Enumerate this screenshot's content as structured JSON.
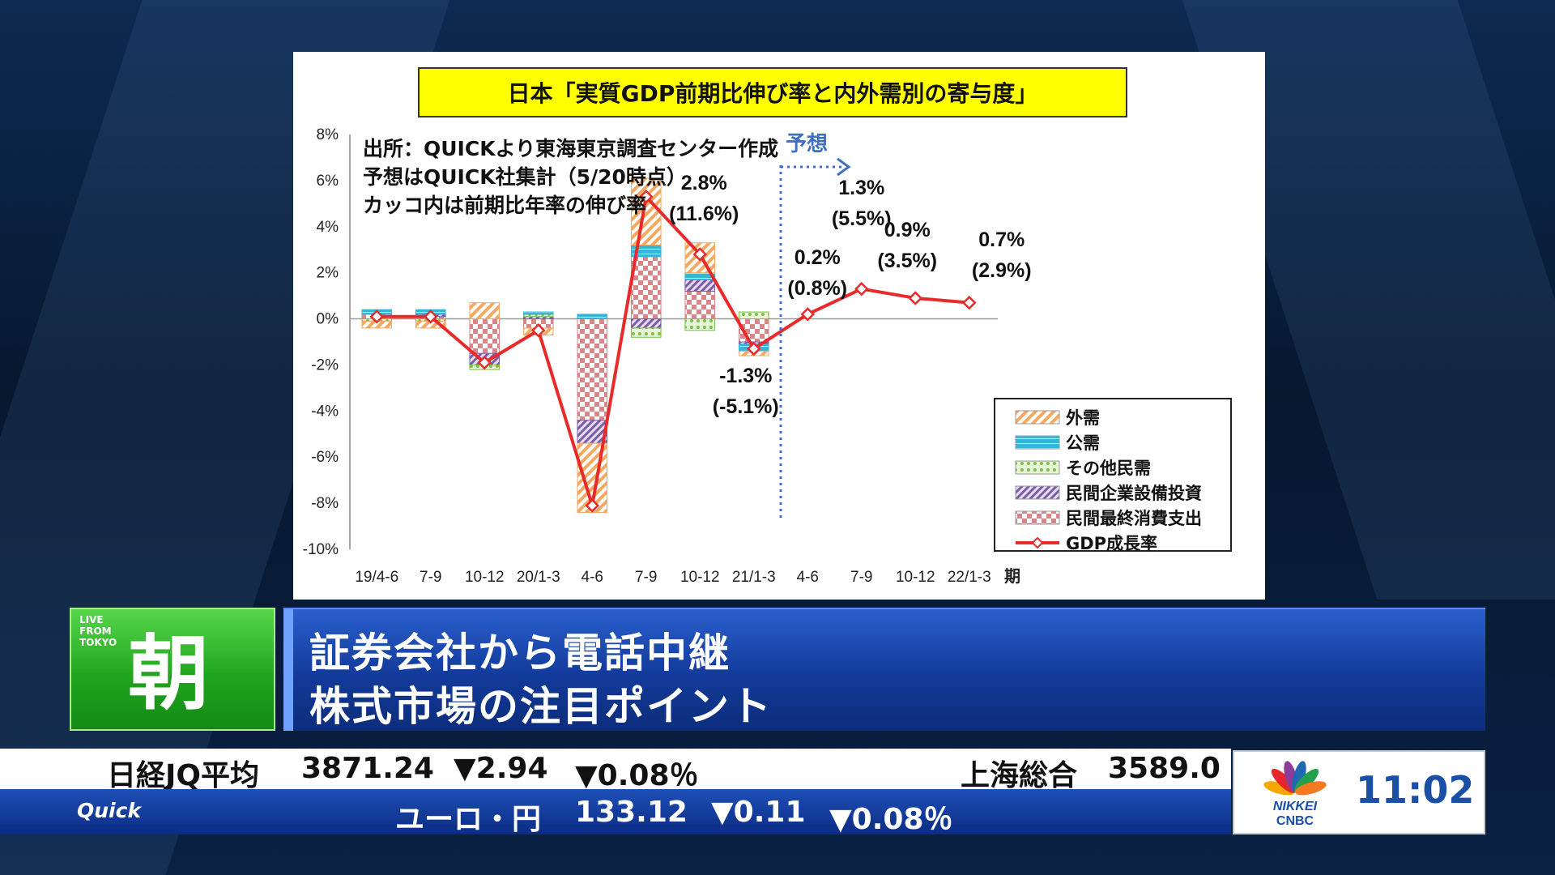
{
  "chart": {
    "title": "日本「実質GDP前期比伸び率と内外需別の寄与度」",
    "notes": [
      "出所：QUICKより東海東京調査センター作成",
      "予想はQUICK社集計（5/20時点）",
      "カッコ内は前期比年率の伸び率"
    ],
    "forecast_label": "予想",
    "x_unit_label": "期",
    "annotations": [
      {
        "x": "10-12a",
        "line1": "2.8%",
        "line2": "(11.6%)"
      },
      {
        "x": "21/1-3",
        "line1": "-1.3%",
        "line2": "(-5.1%)"
      },
      {
        "x": "4-6b",
        "line1": "0.2%",
        "line2": "(0.8%)"
      },
      {
        "x": "7-9b",
        "line1": "1.3%",
        "line2": "(5.5%)"
      },
      {
        "x": "10-12b",
        "line1": "0.9%",
        "line2": "(3.5%)"
      },
      {
        "x": "22/1-3",
        "line1": "0.7%",
        "line2": "(2.9%)"
      }
    ],
    "legend": [
      {
        "name": "外需",
        "pattern": "hatch-orange"
      },
      {
        "name": "公需",
        "pattern": "solid-cyan"
      },
      {
        "name": "その他民需",
        "pattern": "dots-green"
      },
      {
        "name": "民間企業設備投資",
        "pattern": "hatch-purple"
      },
      {
        "name": "民間最終消費支出",
        "pattern": "check-red"
      },
      {
        "name": "GDP成長率",
        "pattern": "line-red"
      }
    ]
  },
  "chart_data": {
    "type": "bar",
    "stacked": true,
    "categories": [
      "19/4-6",
      "7-9",
      "10-12",
      "20/1-3",
      "4-6",
      "7-9",
      "10-12",
      "21/1-3",
      "4-6",
      "7-9",
      "10-12",
      "22/1-3"
    ],
    "ylim": [
      -10,
      8
    ],
    "yticks": [
      "8%",
      "6%",
      "4%",
      "2%",
      "0%",
      "-2%",
      "-4%",
      "-6%",
      "-8%",
      "-10%"
    ],
    "ytick_values": [
      8,
      6,
      4,
      2,
      0,
      -2,
      -4,
      -6,
      -8,
      -10
    ],
    "grid": false,
    "legend_position": "bottom-right",
    "forecast_start_index": 8,
    "series": [
      {
        "name": "民間最終消費支出",
        "color": "#d9534f",
        "values": [
          0.2,
          0.1,
          -1.5,
          -0.4,
          -4.4,
          2.7,
          1.2,
          -1.0,
          null,
          null,
          null,
          null
        ]
      },
      {
        "name": "民間企業設備投資",
        "color": "#7b5ea7",
        "values": [
          0.0,
          0.1,
          -0.5,
          0.1,
          -1.0,
          -0.4,
          0.5,
          -0.1,
          null,
          null,
          null,
          null
        ]
      },
      {
        "name": "その他民需",
        "color": "#7ac142",
        "values": [
          -0.1,
          -0.1,
          -0.2,
          0.1,
          0.0,
          -0.4,
          -0.5,
          0.3,
          null,
          null,
          null,
          null
        ]
      },
      {
        "name": "公需",
        "color": "#35b6d8",
        "values": [
          0.2,
          0.2,
          0.0,
          0.1,
          0.2,
          0.5,
          0.3,
          -0.3,
          null,
          null,
          null,
          null
        ]
      },
      {
        "name": "外需",
        "color": "#f5a860",
        "values": [
          -0.3,
          -0.3,
          0.7,
          -0.3,
          -3.0,
          2.9,
          1.3,
          -0.2,
          null,
          null,
          null,
          null
        ]
      },
      {
        "name": "GDP成長率",
        "type": "line",
        "color": "#e82a2a",
        "values": [
          0.1,
          0.1,
          -1.9,
          -0.5,
          -8.1,
          5.3,
          2.8,
          -1.3,
          0.2,
          1.3,
          0.9,
          0.7
        ]
      }
    ]
  },
  "lower_third": {
    "live_line1": "LIVE",
    "live_line2": "FROM",
    "live_line3": "TOKYO",
    "live_kanji": "朝",
    "headline_line1": "証券会社から電話中継",
    "headline_line2": "株式市場の注目ポイント"
  },
  "ticker": {
    "index1_name": "日経JQ平均",
    "index1_value": "3871.24",
    "index1_change": "▼2.94",
    "index1_pct": "▼0.08％",
    "index2_name": "上海総合",
    "index2_value": "3589.0",
    "fx_name": "ユーロ・円",
    "fx_value": "133.12",
    "fx_change": "▼0.11",
    "fx_pct": "▼0.08％",
    "provider": "Quick"
  },
  "broadcaster": {
    "logo_top": "NIKKEI",
    "logo_bottom": "CNBC",
    "time": "11:02"
  },
  "colors": {
    "title_box": "#ffff00",
    "forecast_line": "#3d6fc2",
    "gdp_line": "#e82a2a",
    "live_green": "#21a51f",
    "headline_blue": "#123a9a",
    "down_blue": "#1a8fe0"
  }
}
